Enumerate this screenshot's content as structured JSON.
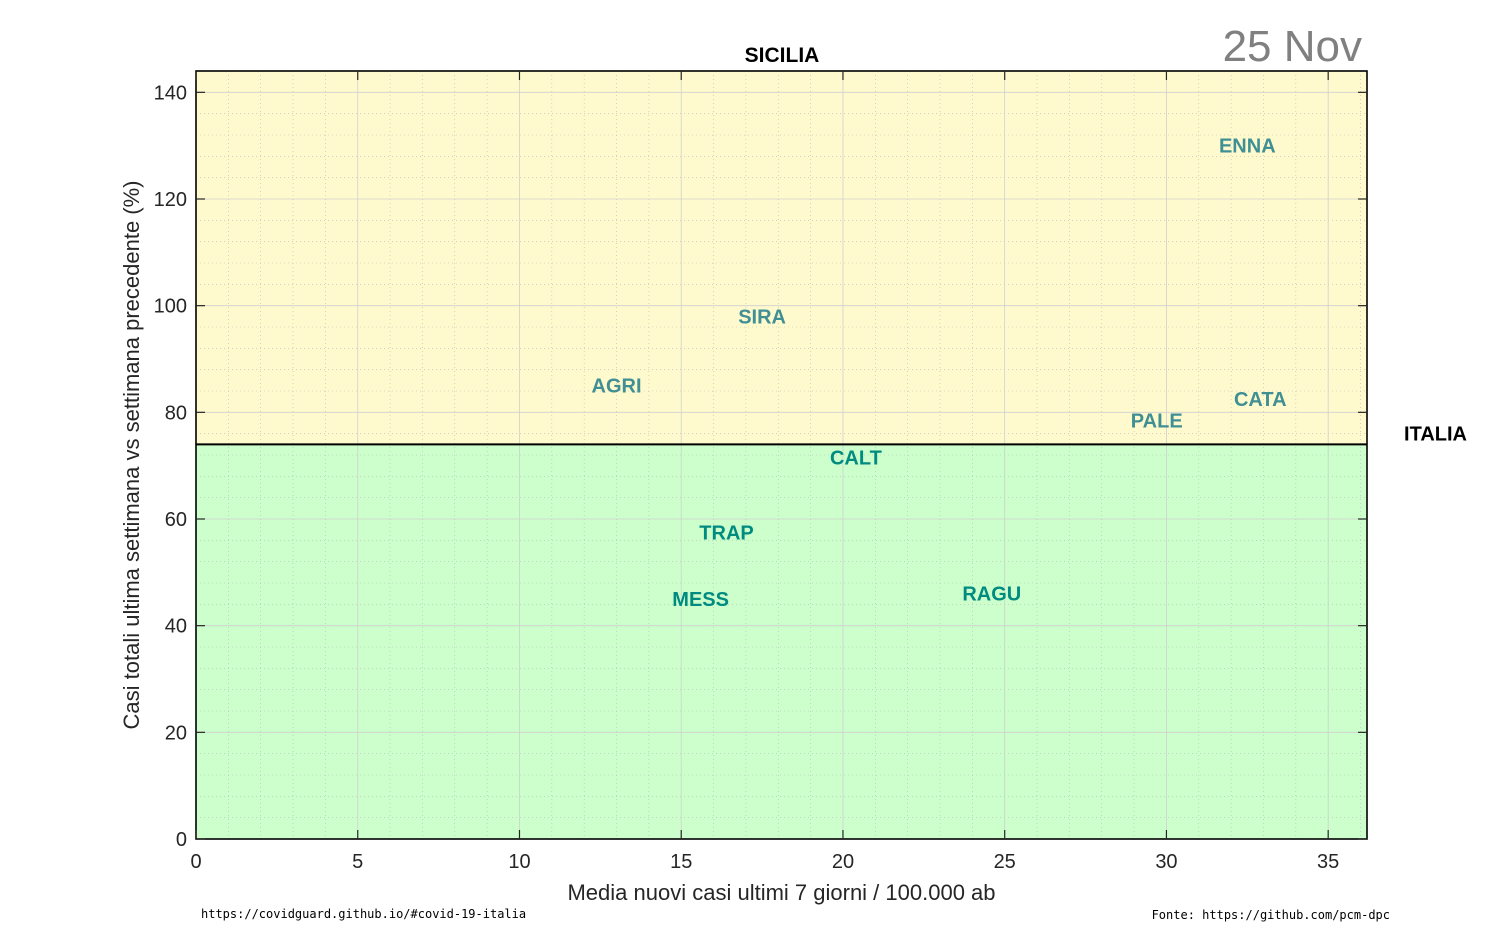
{
  "chart_data": {
    "type": "scatter",
    "title": "SICILIA",
    "date": "25 Nov",
    "xlabel": "Media nuovi casi ultimi 7 giorni / 100.000 ab",
    "ylabel": "Casi totali ultima settimana vs settimana precedente (%)",
    "xlim": [
      0,
      36.2
    ],
    "ylim": [
      0,
      144
    ],
    "xticks": [
      0,
      5,
      10,
      15,
      20,
      25,
      30,
      35
    ],
    "yticks": [
      0,
      20,
      40,
      60,
      80,
      100,
      120,
      140
    ],
    "grid": true,
    "reference_line": {
      "label": "ITALIA",
      "y": 74
    },
    "zones": [
      {
        "name": "above",
        "color": "#fffacd"
      },
      {
        "name": "below",
        "color": "#ccffcc"
      }
    ],
    "points": [
      {
        "label": "ENNA",
        "x": 32.5,
        "y": 130,
        "color": "#3f8f95"
      },
      {
        "label": "SIRA",
        "x": 17.5,
        "y": 98,
        "color": "#3f8f95"
      },
      {
        "label": "AGRI",
        "x": 13.0,
        "y": 85,
        "color": "#3f8f95"
      },
      {
        "label": "CATA",
        "x": 32.9,
        "y": 82.5,
        "color": "#3f8f95"
      },
      {
        "label": "PALE",
        "x": 29.7,
        "y": 78.5,
        "color": "#3f8f95"
      },
      {
        "label": "CALT",
        "x": 20.4,
        "y": 71.5,
        "color": "#008b80"
      },
      {
        "label": "TRAP",
        "x": 16.4,
        "y": 57.5,
        "color": "#008b80"
      },
      {
        "label": "MESS",
        "x": 15.6,
        "y": 45,
        "color": "#008b80"
      },
      {
        "label": "RAGU",
        "x": 24.6,
        "y": 46,
        "color": "#008b80"
      }
    ]
  },
  "footer": {
    "left": "https://covidguard.github.io/#covid-19-italia",
    "right": "Fonte: https://github.com/pcm-dpc"
  }
}
